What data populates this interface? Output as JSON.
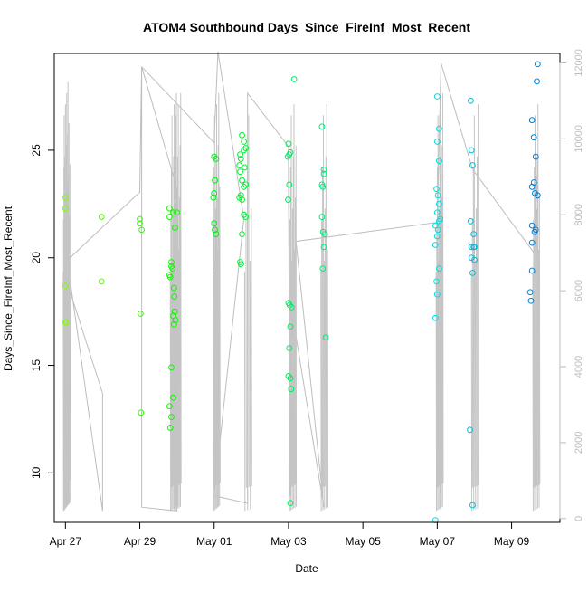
{
  "chart_data": {
    "type": "scatter",
    "title": "ATOM4 Southbound Days_Since_FireInf_Most_Recent",
    "xlabel": "Date",
    "ylabel": "Days_Since_FireInf_Most_Recent",
    "x_unit": "days",
    "xlim": [
      -0.3,
      13.3
    ],
    "ylim": [
      7.7,
      29.5
    ],
    "x_ticks": [
      {
        "x": 0,
        "label": "Apr 27"
      },
      {
        "x": 2,
        "label": "Apr 29"
      },
      {
        "x": 4,
        "label": "May 01"
      },
      {
        "x": 6,
        "label": "May 03"
      },
      {
        "x": 8,
        "label": "May 05"
      },
      {
        "x": 10,
        "label": "May 07"
      },
      {
        "x": 12,
        "label": "May 09"
      }
    ],
    "y_ticks": [
      10,
      15,
      20,
      25
    ],
    "y2_ticks": [
      0,
      2000,
      4000,
      6000,
      8000,
      10000,
      12000
    ],
    "y2lim": [
      -100,
      12250
    ],
    "grid": false,
    "points": [
      [
        0.0,
        22.8
      ],
      [
        0.0,
        22.3
      ],
      [
        0.0,
        18.7
      ],
      [
        0.0,
        17.0
      ],
      [
        0.02,
        17.0
      ],
      [
        0.97,
        21.9
      ],
      [
        0.97,
        18.9
      ],
      [
        2.0,
        21.8
      ],
      [
        2.0,
        21.6
      ],
      [
        2.05,
        21.3
      ],
      [
        2.02,
        17.4
      ],
      [
        2.03,
        12.8
      ],
      [
        2.8,
        22.3
      ],
      [
        2.8,
        21.9
      ],
      [
        2.85,
        19.8
      ],
      [
        2.85,
        19.6
      ],
      [
        2.8,
        19.2
      ],
      [
        2.82,
        19.1
      ],
      [
        2.88,
        19.5
      ],
      [
        2.85,
        14.9
      ],
      [
        2.8,
        13.1
      ],
      [
        2.85,
        12.6
      ],
      [
        2.82,
        12.1
      ],
      [
        2.9,
        22.1
      ],
      [
        2.95,
        21.4
      ],
      [
        2.92,
        18.6
      ],
      [
        2.93,
        18.2
      ],
      [
        2.9,
        17.3
      ],
      [
        2.94,
        17.5
      ],
      [
        2.96,
        17.1
      ],
      [
        2.92,
        16.9
      ],
      [
        2.9,
        13.5
      ],
      [
        3.0,
        22.1
      ],
      [
        4.0,
        24.7
      ],
      [
        4.05,
        24.6
      ],
      [
        4.02,
        23.6
      ],
      [
        4.0,
        23.0
      ],
      [
        3.98,
        22.8
      ],
      [
        4.0,
        21.6
      ],
      [
        4.02,
        21.3
      ],
      [
        4.05,
        21.1
      ],
      [
        4.75,
        25.7
      ],
      [
        4.8,
        25.4
      ],
      [
        4.85,
        25.1
      ],
      [
        4.8,
        25.0
      ],
      [
        4.7,
        24.8
      ],
      [
        4.72,
        24.6
      ],
      [
        4.68,
        24.3
      ],
      [
        4.7,
        24.0
      ],
      [
        4.82,
        24.2
      ],
      [
        4.75,
        23.6
      ],
      [
        4.8,
        23.3
      ],
      [
        4.85,
        23.4
      ],
      [
        4.72,
        22.9
      ],
      [
        4.68,
        22.8
      ],
      [
        4.75,
        22.7
      ],
      [
        4.8,
        22.0
      ],
      [
        4.85,
        21.9
      ],
      [
        4.75,
        21.1
      ],
      [
        4.7,
        19.8
      ],
      [
        4.72,
        19.7
      ],
      [
        6.0,
        25.3
      ],
      [
        6.02,
        24.8
      ],
      [
        5.98,
        24.7
      ],
      [
        6.05,
        24.9
      ],
      [
        6.02,
        23.4
      ],
      [
        5.99,
        22.7
      ],
      [
        6.03,
        17.8
      ],
      [
        6.08,
        17.7
      ],
      [
        6.0,
        17.9
      ],
      [
        6.05,
        16.8
      ],
      [
        6.02,
        15.8
      ],
      [
        6.0,
        14.5
      ],
      [
        6.05,
        14.4
      ],
      [
        6.07,
        13.9
      ],
      [
        6.05,
        8.6
      ],
      [
        6.15,
        28.3
      ],
      [
        6.9,
        26.1
      ],
      [
        6.95,
        24.1
      ],
      [
        6.95,
        23.9
      ],
      [
        6.9,
        23.4
      ],
      [
        6.92,
        23.3
      ],
      [
        6.9,
        21.9
      ],
      [
        6.93,
        21.2
      ],
      [
        6.98,
        21.1
      ],
      [
        6.95,
        20.5
      ],
      [
        6.92,
        19.5
      ],
      [
        7.0,
        16.3
      ],
      [
        10.0,
        27.5
      ],
      [
        10.05,
        26.0
      ],
      [
        10.0,
        25.4
      ],
      [
        10.05,
        24.5
      ],
      [
        9.98,
        23.2
      ],
      [
        10.02,
        22.9
      ],
      [
        10.05,
        22.5
      ],
      [
        10.0,
        22.1
      ],
      [
        10.08,
        21.8
      ],
      [
        9.95,
        21.5
      ],
      [
        10.05,
        21.7
      ],
      [
        10.02,
        21.3
      ],
      [
        10.0,
        21.0
      ],
      [
        9.95,
        20.6
      ],
      [
        9.98,
        18.9
      ],
      [
        10.05,
        19.5
      ],
      [
        9.95,
        17.2
      ],
      [
        10.0,
        18.3
      ],
      [
        9.95,
        7.8
      ],
      [
        10.9,
        27.3
      ],
      [
        10.92,
        25.0
      ],
      [
        10.95,
        24.3
      ],
      [
        10.9,
        21.7
      ],
      [
        10.92,
        20.5
      ],
      [
        10.98,
        20.5
      ],
      [
        11.0,
        20.5
      ],
      [
        11.0,
        19.9
      ],
      [
        10.95,
        19.3
      ],
      [
        10.92,
        20.0
      ],
      [
        10.98,
        21.1
      ],
      [
        10.88,
        12.0
      ],
      [
        10.95,
        8.5
      ],
      [
        12.55,
        26.4
      ],
      [
        12.6,
        25.6
      ],
      [
        12.65,
        24.7
      ],
      [
        12.55,
        23.3
      ],
      [
        12.63,
        23.0
      ],
      [
        12.6,
        23.5
      ],
      [
        12.7,
        22.9
      ],
      [
        12.55,
        21.5
      ],
      [
        12.62,
        21.2
      ],
      [
        12.65,
        21.3
      ],
      [
        12.55,
        20.7
      ],
      [
        12.5,
        18.4
      ],
      [
        12.52,
        18.0
      ],
      [
        12.55,
        19.4
      ],
      [
        12.7,
        29.0
      ],
      [
        12.68,
        28.2
      ]
    ]
  }
}
